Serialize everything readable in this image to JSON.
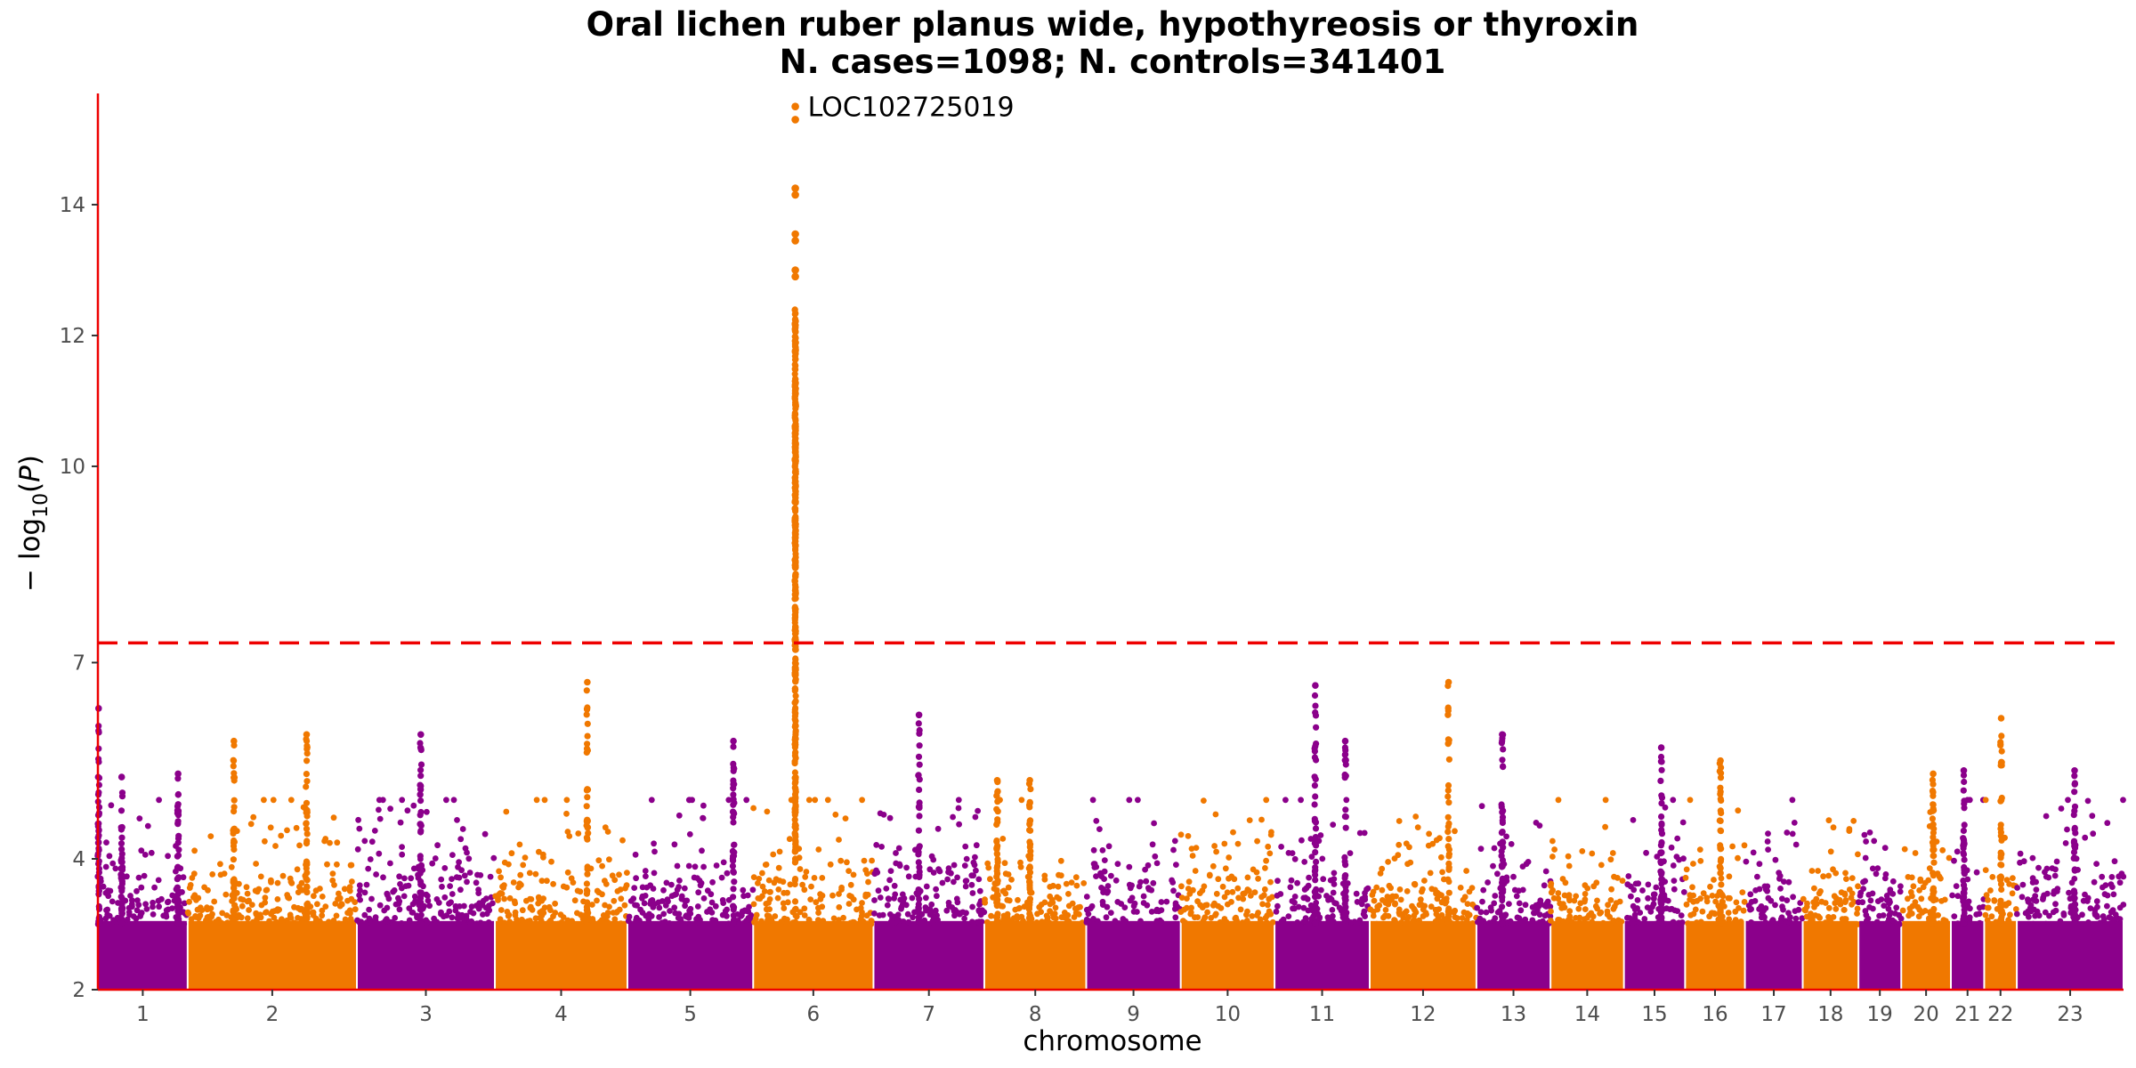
{
  "chart_data": {
    "type": "scatter",
    "subtype": "manhattan",
    "title_line1": "Oral lichen ruber planus wide, hypothyreosis or thyroxin",
    "title_line2": "N. cases=1098; N. controls=341401",
    "xlabel": "chromosome",
    "ylabel": "−log10(P)",
    "ylim": [
      2,
      15.7
    ],
    "yticks": [
      2,
      4,
      7,
      10,
      12,
      14
    ],
    "significance_line": 7.3,
    "colors": {
      "odd": "#8b008b",
      "even": "#f07800",
      "axis": "#ee0000",
      "threshold": "#ee0000"
    },
    "grid": false,
    "legend": "none",
    "chromosomes": [
      {
        "label": "1",
        "start": 0,
        "end": 132
      },
      {
        "label": "2",
        "start": 132,
        "end": 381
      },
      {
        "label": "3",
        "start": 381,
        "end": 584
      },
      {
        "label": "4",
        "start": 584,
        "end": 779
      },
      {
        "label": "5",
        "start": 779,
        "end": 964
      },
      {
        "label": "6",
        "start": 964,
        "end": 1141
      },
      {
        "label": "7",
        "start": 1141,
        "end": 1304
      },
      {
        "label": "8",
        "start": 1304,
        "end": 1454
      },
      {
        "label": "9",
        "start": 1454,
        "end": 1593
      },
      {
        "label": "10",
        "start": 1593,
        "end": 1731
      },
      {
        "label": "11",
        "start": 1731,
        "end": 1871
      },
      {
        "label": "12",
        "start": 1871,
        "end": 2028
      },
      {
        "label": "13",
        "start": 2028,
        "end": 2137
      },
      {
        "label": "14",
        "start": 2137,
        "end": 2245
      },
      {
        "label": "15",
        "start": 2245,
        "end": 2335
      },
      {
        "label": "16",
        "start": 2335,
        "end": 2423
      },
      {
        "label": "17",
        "start": 2423,
        "end": 2508
      },
      {
        "label": "18",
        "start": 2508,
        "end": 2590
      },
      {
        "label": "19",
        "start": 2590,
        "end": 2653
      },
      {
        "label": "20",
        "start": 2653,
        "end": 2726
      },
      {
        "label": "21",
        "start": 2726,
        "end": 2775
      },
      {
        "label": "22",
        "start": 2775,
        "end": 2823
      },
      {
        "label": "23",
        "start": 2823,
        "end": 2980
      }
    ],
    "peaks": [
      {
        "chr": "1",
        "x": 1,
        "top": 6.3
      },
      {
        "chr": "1",
        "x": 35,
        "top": 5.25
      },
      {
        "chr": "1",
        "x": 118,
        "top": 5.3
      },
      {
        "chr": "2",
        "x": 200,
        "top": 5.8
      },
      {
        "chr": "2",
        "x": 307,
        "top": 5.9
      },
      {
        "chr": "3",
        "x": 475,
        "top": 5.9
      },
      {
        "chr": "4",
        "x": 720,
        "top": 6.7
      },
      {
        "chr": "5",
        "x": 935,
        "top": 5.8
      },
      {
        "chr": "6",
        "x": 1026,
        "top": 15.5,
        "label": "LOC102725019"
      },
      {
        "chr": "7",
        "x": 1208,
        "top": 6.2
      },
      {
        "chr": "8",
        "x": 1323,
        "top": 5.2
      },
      {
        "chr": "8",
        "x": 1371,
        "top": 5.2
      },
      {
        "chr": "11",
        "x": 1791,
        "top": 6.65
      },
      {
        "chr": "11",
        "x": 1835,
        "top": 5.8
      },
      {
        "chr": "12",
        "x": 1987,
        "top": 6.7
      },
      {
        "chr": "13",
        "x": 2066,
        "top": 5.9
      },
      {
        "chr": "15",
        "x": 2300,
        "top": 5.7
      },
      {
        "chr": "16",
        "x": 2387,
        "top": 5.5
      },
      {
        "chr": "20",
        "x": 2700,
        "top": 5.3
      },
      {
        "chr": "21",
        "x": 2745,
        "top": 5.35
      },
      {
        "chr": "22",
        "x": 2800,
        "top": 6.15
      },
      {
        "chr": "23",
        "x": 2908,
        "top": 5.35
      }
    ]
  }
}
